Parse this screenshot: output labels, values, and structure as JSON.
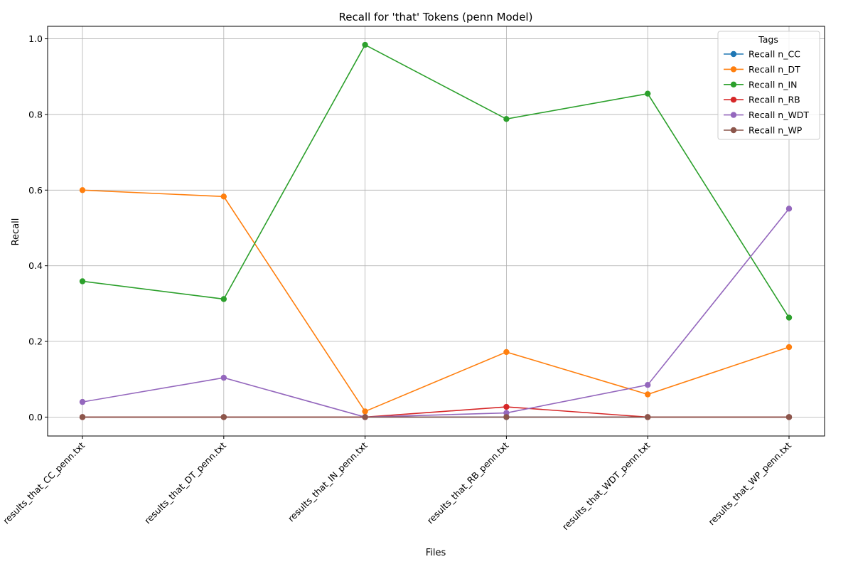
{
  "chart_data": {
    "type": "line",
    "title": "Recall for 'that' Tokens (penn Model)",
    "xlabel": "Files",
    "ylabel": "Recall",
    "categories": [
      "results_that_CC_penn.txt",
      "results_that_DT_penn.txt",
      "results_that_IN_penn.txt",
      "results_that_RB_penn.txt",
      "results_that_WDT_penn.txt",
      "results_that_WP_penn.txt"
    ],
    "ylim": [
      -0.05,
      1.033
    ],
    "yticks": [
      "0.0",
      "0.2",
      "0.4",
      "0.6",
      "0.8",
      "1.0"
    ],
    "grid": true,
    "legend": {
      "title": "Tags",
      "placement": "top-right"
    },
    "series": [
      {
        "name": "Recall n_CC",
        "color": "#1f77b4",
        "values": [
          0,
          0,
          0,
          0,
          0,
          0
        ]
      },
      {
        "name": "Recall n_DT",
        "color": "#ff7f0e",
        "values": [
          0.6,
          0.583,
          0.015,
          0.172,
          0.06,
          0.185
        ]
      },
      {
        "name": "Recall n_IN",
        "color": "#2ca02c",
        "values": [
          0.359,
          0.312,
          0.984,
          0.788,
          0.855,
          0.263
        ]
      },
      {
        "name": "Recall n_RB",
        "color": "#d62728",
        "values": [
          0,
          0,
          0,
          0.027,
          0,
          0
        ]
      },
      {
        "name": "Recall n_WDT",
        "color": "#9467bd",
        "values": [
          0.04,
          0.104,
          0,
          0.011,
          0.085,
          0.551
        ]
      },
      {
        "name": "Recall n_WP",
        "color": "#8c564b",
        "values": [
          0,
          0,
          0,
          0,
          0,
          0
        ]
      }
    ]
  }
}
